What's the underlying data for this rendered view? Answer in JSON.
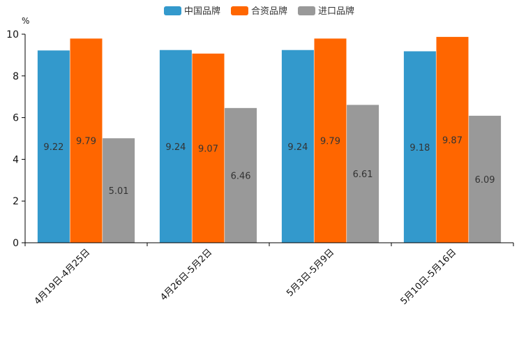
{
  "chart_data": {
    "type": "bar",
    "unit": "%",
    "categories": [
      "4月19日-4月25日",
      "4月26日-5月2日",
      "5月3日-5月9日",
      "5月10日-5月16日"
    ],
    "series": [
      {
        "name": "中国品牌",
        "color": "#3399cc",
        "values": [
          9.22,
          9.24,
          9.24,
          9.18
        ]
      },
      {
        "name": "合资品牌",
        "color": "#ff6600",
        "values": [
          9.79,
          9.07,
          9.79,
          9.87
        ]
      },
      {
        "name": "进口品牌",
        "color": "#999999",
        "values": [
          5.01,
          6.46,
          6.61,
          6.09
        ]
      }
    ],
    "ylim": [
      0,
      10
    ],
    "yticks": [
      0,
      2,
      4,
      6,
      8,
      10
    ],
    "legend_position": "top-center",
    "grid": false
  }
}
